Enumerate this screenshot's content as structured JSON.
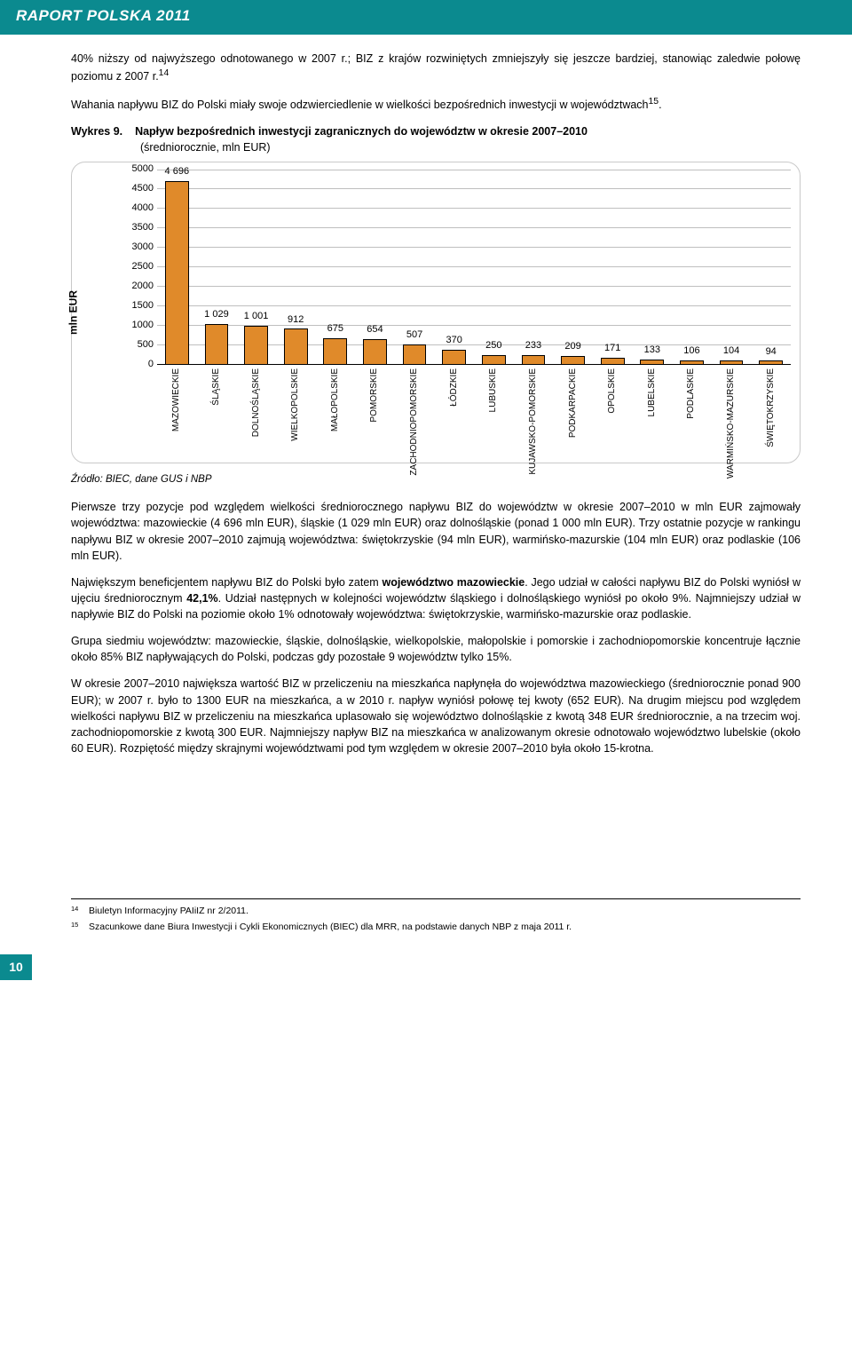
{
  "header": {
    "title": "RAPORT POLSKA 2011"
  },
  "paras": {
    "p1": "40% niższy od najwyższego odnotowanego w 2007 r.; BIZ z krajów rozwiniętych zmniejszyły się jeszcze bardziej, stanowiąc zaledwie połowę poziomu z 2007 r.",
    "p1_sup": "14",
    "p2": "Wahania napływu BIZ do Polski miały swoje odzwierciedlenie w wielkości bezpośrednich inwestycji w województwach",
    "p2_sup": "15",
    "p2_tail": ".",
    "p3a": "Pierwsze trzy pozycje pod względem wielkości średniorocznego napływu BIZ do województw w okresie 2007–2010 w mln EUR zajmowały województwa: mazowieckie (4 696 mln EUR), śląskie (1 029 mln EUR) oraz dolnośląskie (ponad 1 000 mln EUR). Trzy ostatnie pozycje w rankingu napływu BIZ w okresie 2007–2010 zajmują województwa: świętokrzyskie (94 mln EUR), warmińsko-mazurskie (104 mln EUR) oraz podlaskie (106 mln EUR).",
    "p3b_1": "Największym beneficjentem napływu BIZ do Polski było zatem ",
    "p3b_bold": "województwo mazowieckie",
    "p3b_2": ". Jego udział w całości napływu BIZ do Polski wyniósł w ujęciu średniorocznym ",
    "p3b_pct": "42,1%",
    "p3b_3": ". Udział następnych w kolejności województw śląskiego i dolnośląskiego wyniósł po około 9%. Najmniejszy udział w napływie BIZ do Polski na poziomie około 1% odnotowały województwa: świętokrzyskie, warmińsko-mazurskie oraz podlaskie.",
    "p3c": "Grupa siedmiu województw: mazowieckie, śląskie, dolnośląskie, wielkopolskie, małopolskie i pomorskie i zachodniopomorskie koncentruje łącznie około 85% BIZ napływających do Polski, podczas gdy pozostałe 9 województw tylko 15%.",
    "p3d": "W okresie 2007–2010 największa wartość BIZ w przeliczeniu na mieszkańca napłynęła do województwa mazowieckiego (średniorocznie ponad 900 EUR); w 2007 r. było to 1300 EUR na mieszkańca, a w 2010 r. napływ wyniósł połowę tej kwoty (652 EUR). Na drugim miejscu pod względem wielkości napływu BIZ w przeliczeniu na mieszkańca uplasowało się województwo dolnośląskie z kwotą 348 EUR średniorocznie, a na trzecim woj. zachodniopomorskie z kwotą 300 EUR. Najmniejszy napływ BIZ na mieszkańca w analizowanym okresie odnotowało województwo lubelskie (około 60 EUR). Rozpiętość między skrajnymi województwami pod tym względem w okresie 2007–2010 była około 15-krotna."
  },
  "chart_caption": {
    "lead": "Wykres 9.",
    "title": "Napływ bezpośrednich inwestycji zagranicznych do województw w okresie 2007–2010",
    "subtitle": "(średniorocznie, mln EUR)"
  },
  "chart": {
    "type": "bar",
    "y_axis_title": "mln EUR",
    "ylim": [
      0,
      5000
    ],
    "ytick_step": 500,
    "yticks": [
      0,
      500,
      1000,
      1500,
      2000,
      2500,
      3000,
      3500,
      4000,
      4500,
      5000
    ],
    "grid_color": "#bfbfbf",
    "axis_color": "#000000",
    "bar_fill": "#e08a2a",
    "bar_border": "#000000",
    "background": "#ffffff",
    "bar_width": 0.6,
    "label_fontsize": 10,
    "value_fontsize": 11,
    "categories": [
      "MAZOWIECKIE",
      "ŚLĄSKIE",
      "DOLNOŚLĄSKIE",
      "WIELKOPOLSKIE",
      "MAŁOPOLSKIE",
      "POMORSKIE",
      "ZACHODNIOPOMORSKIE",
      "ŁÓDZKIE",
      "LUBUSKIE",
      "KUJAWSKO-POMORSKIE",
      "PODKARPACKIE",
      "OPOLSKIE",
      "LUBELSKIE",
      "PODLASKIE",
      "WARMIŃSKO-MAZURSKIE",
      "ŚWIĘTOKRZYSKIE"
    ],
    "values": [
      4696,
      1029,
      1001,
      912,
      675,
      654,
      507,
      370,
      250,
      233,
      209,
      171,
      133,
      106,
      104,
      94
    ],
    "value_labels": [
      "4 696",
      "1 029",
      "1 001",
      "912",
      "675",
      "654",
      "507",
      "370",
      "250",
      "233",
      "209",
      "171",
      "133",
      "106",
      "104",
      "94"
    ]
  },
  "source": "Źródło: BIEC, dane GUS i NBP",
  "footnotes": [
    {
      "num": "14",
      "text": "Biuletyn Informacyjny PAIiIZ nr 2/2011."
    },
    {
      "num": "15",
      "text": "Szacunkowe dane Biura Inwestycji i Cykli Ekonomicznych (BIEC) dla MRR, na podstawie danych NBP z maja 2011 r."
    }
  ],
  "page_number": "10",
  "colors": {
    "brand": "#0b8a8f",
    "text": "#000000"
  }
}
